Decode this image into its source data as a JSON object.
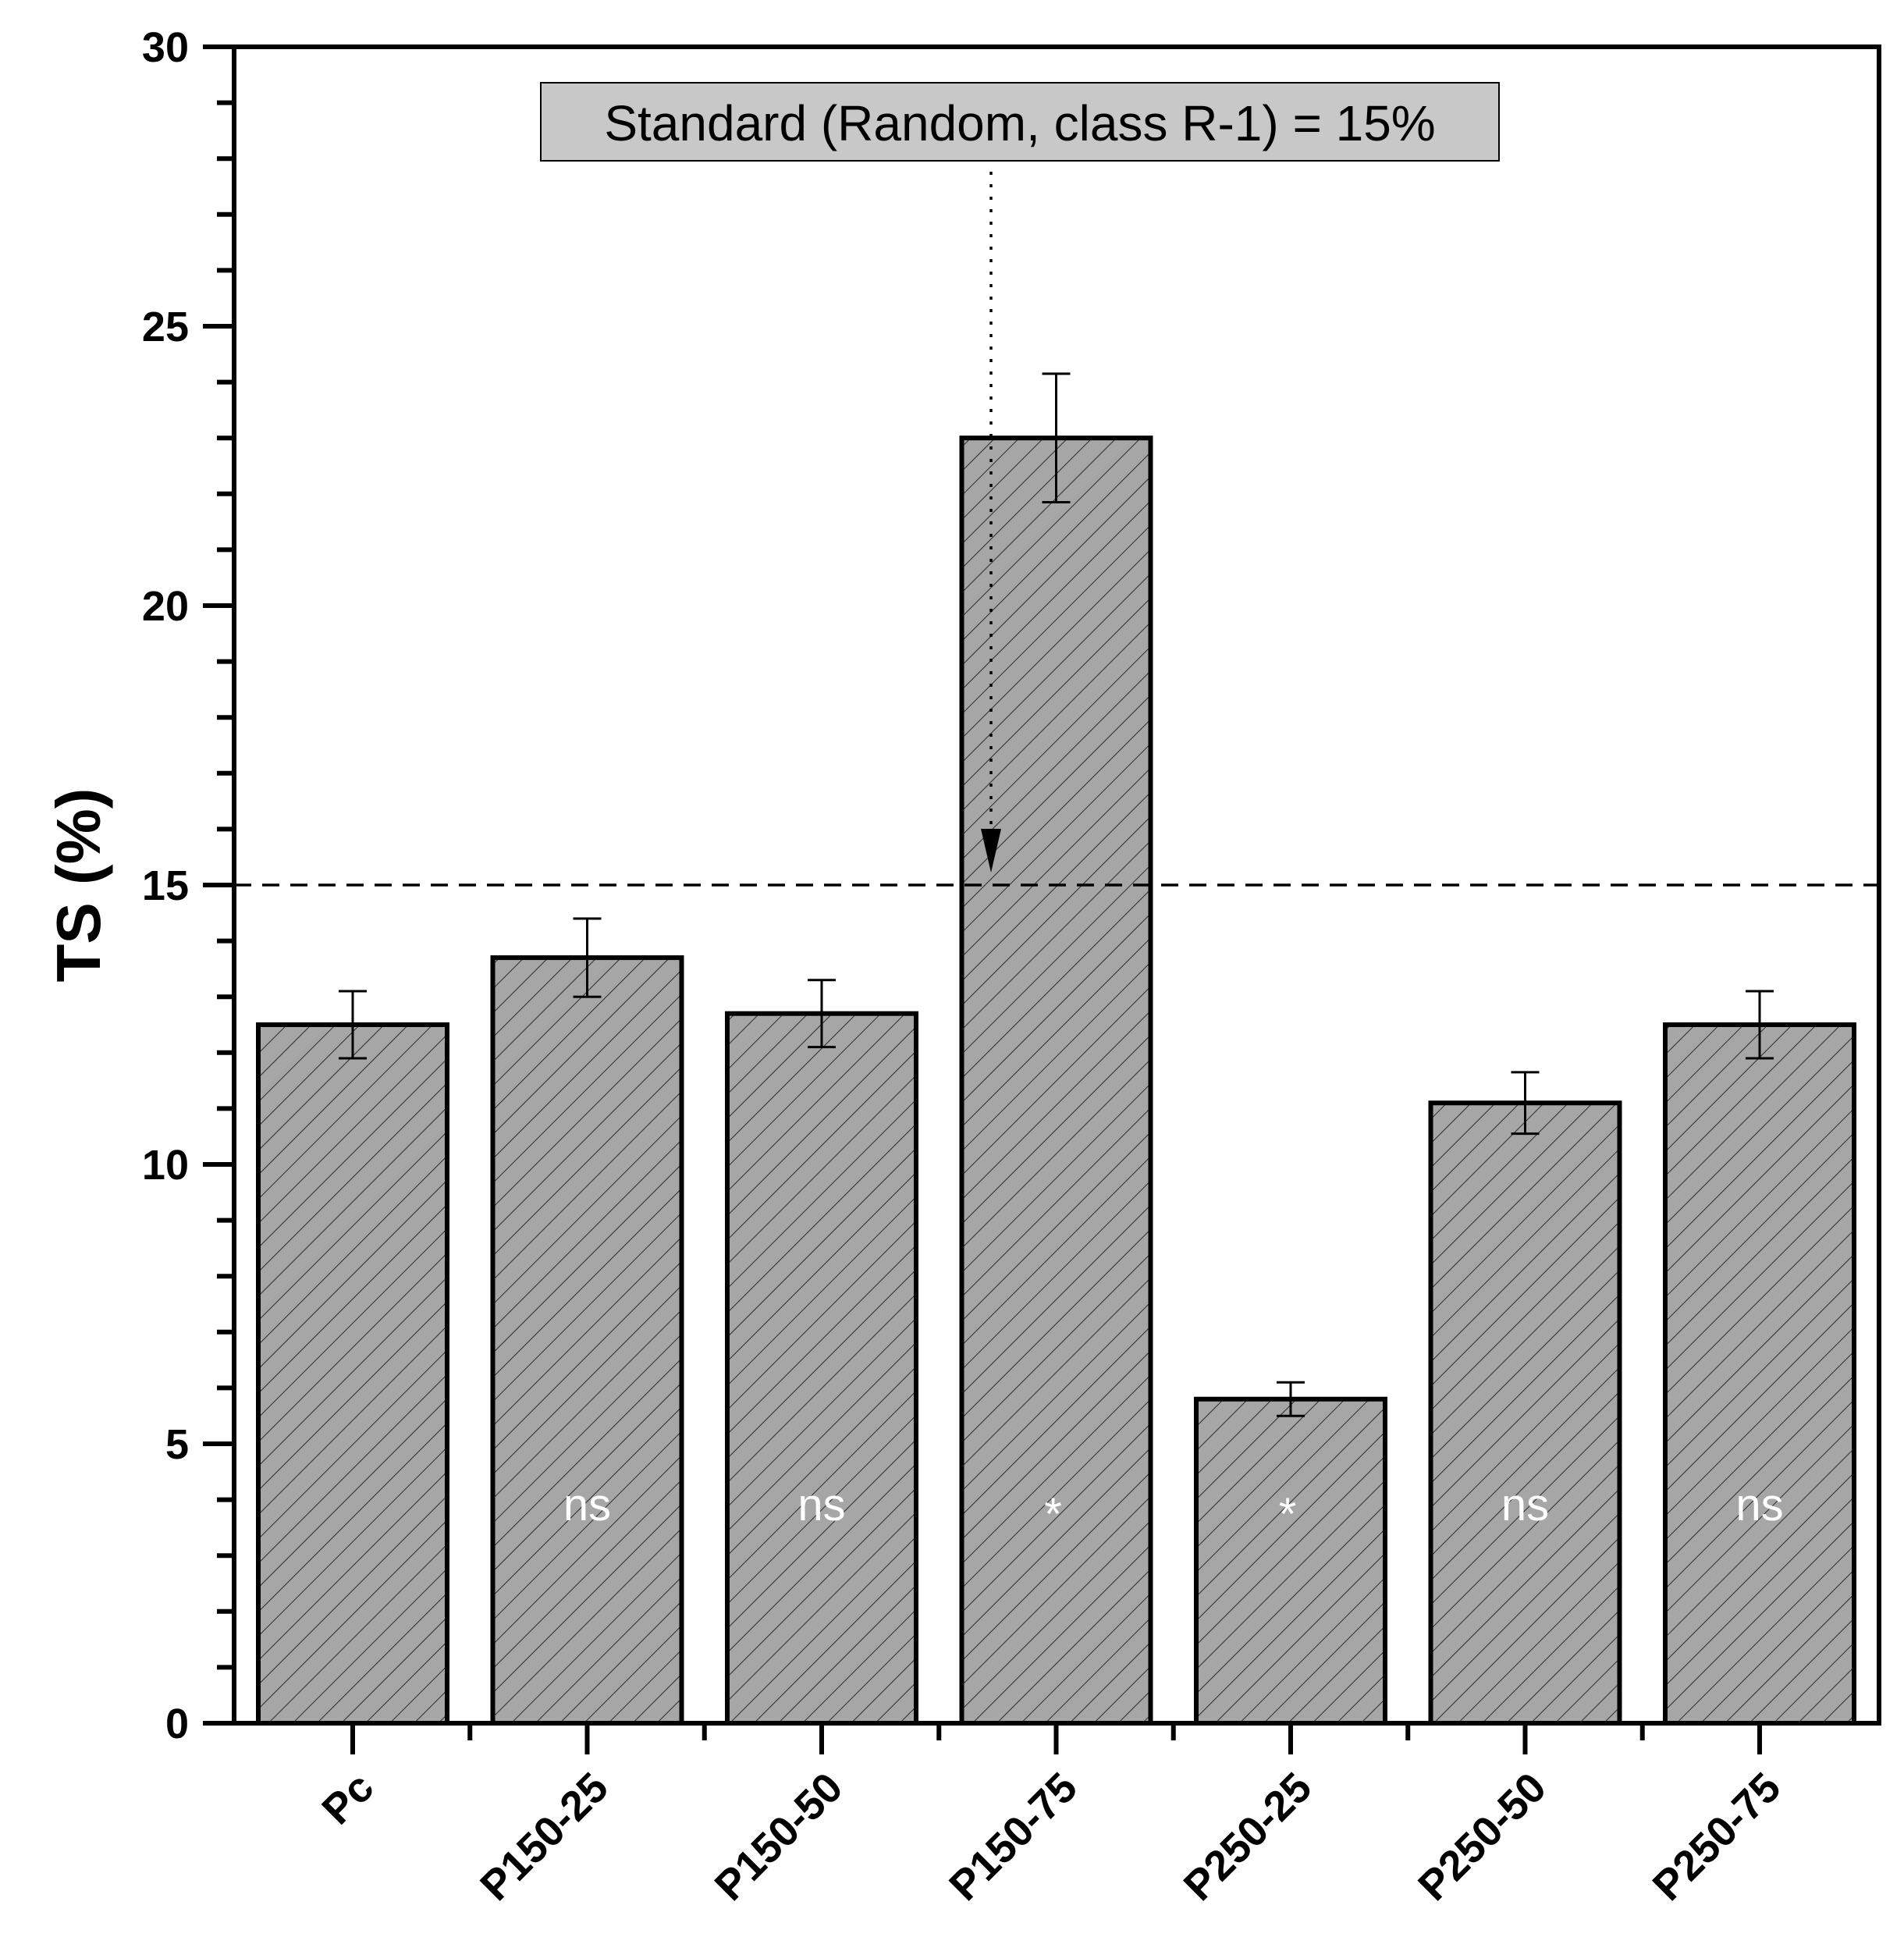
{
  "chart_data": {
    "type": "bar",
    "ylabel": "TS (%)",
    "xlabel": "",
    "ylim": [
      0,
      30
    ],
    "yticks": [
      0,
      5,
      10,
      15,
      20,
      25,
      30
    ],
    "categories": [
      "Pc",
      "P150-25",
      "P150-50",
      "P150-75",
      "P250-25",
      "P250-50",
      "P250-75"
    ],
    "values": [
      12.5,
      13.7,
      12.7,
      23.0,
      5.8,
      11.1,
      12.5
    ],
    "errors": [
      0.6,
      0.7,
      0.6,
      1.15,
      0.3,
      0.55,
      0.6
    ],
    "significance": [
      "",
      "ns",
      "ns",
      "*",
      "*",
      "ns",
      "ns"
    ],
    "reference_line": {
      "value": 15
    },
    "annotation": {
      "text": "Standard (Random, class R-1) = 15%"
    },
    "grid": false,
    "colors": {
      "bar_fill": "#a6a6a6",
      "bar_stroke": "#000000",
      "annotation_fill": "#c8c8c8"
    }
  }
}
